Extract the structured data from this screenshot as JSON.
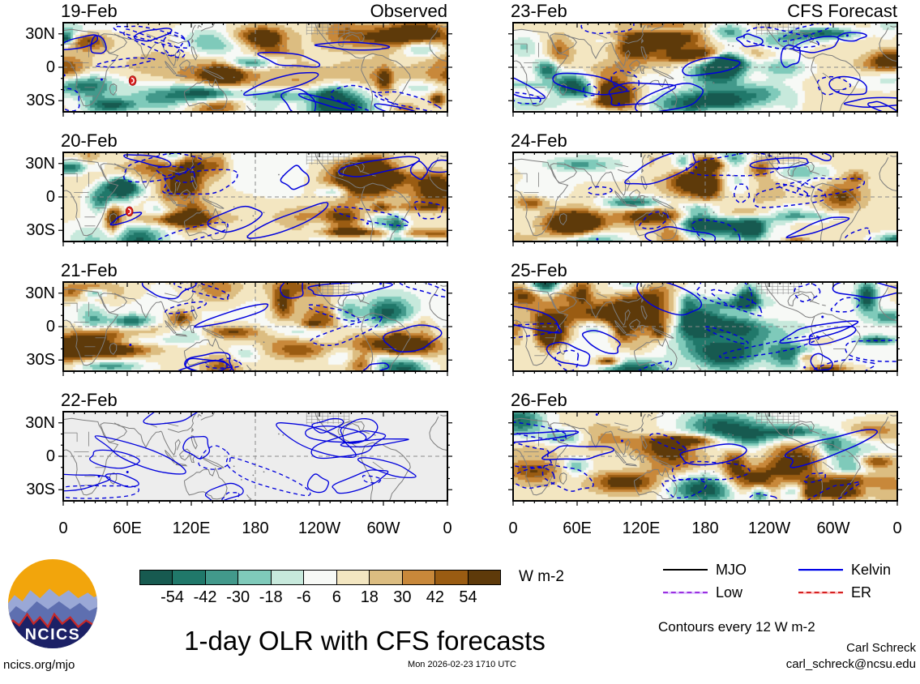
{
  "title": "1-day OLR with CFS forecasts",
  "panels": [
    {
      "date": "19-Feb",
      "corner_label": "Observed",
      "column": "left",
      "row": 0,
      "variant": "shaded",
      "cyclone": {
        "lon": 65,
        "lat": -12
      }
    },
    {
      "date": "20-Feb",
      "corner_label": "",
      "column": "left",
      "row": 1,
      "variant": "shaded",
      "cyclone": {
        "lon": 62,
        "lat": -13
      }
    },
    {
      "date": "21-Feb",
      "corner_label": "",
      "column": "left",
      "row": 2,
      "variant": "shaded",
      "cyclone": null
    },
    {
      "date": "22-Feb",
      "corner_label": "",
      "column": "left",
      "row": 3,
      "variant": "contours-only",
      "cyclone": null
    },
    {
      "date": "23-Feb",
      "corner_label": "CFS Forecast",
      "column": "right",
      "row": 0,
      "variant": "shaded",
      "cyclone": null
    },
    {
      "date": "24-Feb",
      "corner_label": "",
      "column": "right",
      "row": 1,
      "variant": "shaded",
      "cyclone": null
    },
    {
      "date": "25-Feb",
      "corner_label": "",
      "column": "right",
      "row": 2,
      "variant": "shaded",
      "cyclone": null
    },
    {
      "date": "26-Feb",
      "corner_label": "",
      "column": "right",
      "row": 3,
      "variant": "shaded",
      "cyclone": null
    }
  ],
  "axes": {
    "x_tick_labels": [
      "0",
      "60E",
      "120E",
      "180",
      "120W",
      "60W",
      "0"
    ],
    "y_tick_labels": [
      "30N",
      "0",
      "30S"
    ]
  },
  "colorbar": {
    "values": [
      "-54",
      "-42",
      "-30",
      "-18",
      "-6",
      "6",
      "18",
      "30",
      "42",
      "54"
    ],
    "unit": "W m-2",
    "colors": [
      "#175a50",
      "#20786a",
      "#42998b",
      "#7fcaba",
      "#c7e9dc",
      "#f7f9f6",
      "#f3e6c1",
      "#dcbd81",
      "#c8883a",
      "#9a5c12",
      "#5e3a0a"
    ]
  },
  "legend": {
    "items": [
      {
        "label": "MJO",
        "color": "#000000",
        "style": "solid",
        "underlay": null
      },
      {
        "label": "Kelvin",
        "color": "#0000e6",
        "style": "solid",
        "underlay": "#c9d6ff"
      },
      {
        "label": "Low",
        "color": "#9b30e0",
        "style": "dashed",
        "underlay": "#e2ccff"
      },
      {
        "label": "ER",
        "color": "#d42020",
        "style": "dashed",
        "underlay": "#ffc4c4"
      }
    ],
    "note": "Contours every 12 W m-2"
  },
  "footer": {
    "site": "ncics.org/mjo",
    "timestamp": "Mon 2026-02-23 1710 UTC",
    "credit_name": "Carl Schreck",
    "credit_email": "carl_schreck@ncsu.edu",
    "logo_text": "NCICS"
  },
  "style_colors": {
    "contour_blue": "#0000dd",
    "coastline_gray": "#7d7d7d",
    "gridline_gray": "#8a8a8a",
    "missing_panel_bg": "#ededed",
    "cyclone_red": "#d8221f"
  },
  "chart_data": {
    "type": "heatmap",
    "subtype": "map-panel-grid-olr-anomalies",
    "title": "1-day OLR with CFS forecasts",
    "unit": "W m-2",
    "columns": [
      {
        "heading": "Observed",
        "panels": [
          "19-Feb",
          "20-Feb",
          "21-Feb",
          "22-Feb"
        ]
      },
      {
        "heading": "CFS Forecast",
        "panels": [
          "23-Feb",
          "24-Feb",
          "25-Feb",
          "26-Feb"
        ]
      }
    ],
    "x_axis": {
      "ticks": [
        "0",
        "60E",
        "120E",
        "180",
        "120W",
        "60W",
        "0"
      ],
      "range_deg_lon": [
        0,
        360
      ]
    },
    "y_axis": {
      "ticks": [
        "30N",
        "0",
        "30S"
      ]
    },
    "colorbar_bounds": [
      -54,
      -42,
      -30,
      -18,
      -6,
      6,
      18,
      30,
      42,
      54
    ],
    "contour_interval": 12,
    "contour_series": [
      "MJO",
      "Low",
      "Kelvin",
      "ER"
    ],
    "notes": "Shaded OLR anomalies (W m-2) 40N-40S; 22-Feb panel shows wave contours only on gray background; tropical cyclone symbol in Indian Ocean on 19-20 Feb"
  }
}
